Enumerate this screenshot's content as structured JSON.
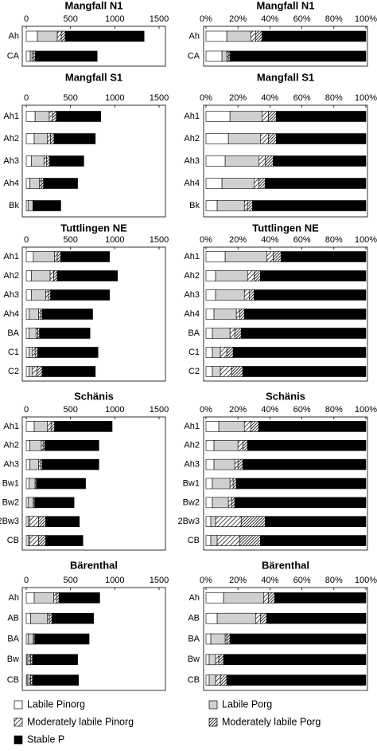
{
  "chart_data": [
    {
      "type": "bar",
      "orientation": "horizontal",
      "stacked": true,
      "title": "Mangfall N1",
      "categories": [
        "Ah",
        "CA"
      ],
      "xlim": [
        0,
        1500
      ],
      "xticks": [
        0,
        500,
        1000,
        1500
      ],
      "series": [
        {
          "values": [
            126,
            45
          ]
        },
        {
          "values": [
            225,
            20
          ]
        },
        {
          "values": [
            45,
            18
          ]
        },
        {
          "values": [
            45,
            18
          ]
        },
        {
          "values": [
            890,
            700
          ]
        }
      ]
    },
    {
      "type": "bar",
      "orientation": "horizontal",
      "stacked": true,
      "title": "Mangfall N1",
      "categories": [
        "Ah",
        "CA"
      ],
      "xlim": [
        0,
        100
      ],
      "xticks": [
        {
          "value": 0,
          "label": "0%"
        },
        {
          "value": 20,
          "label": "20%"
        },
        {
          "value": 40,
          "label": "40%"
        },
        {
          "value": 60,
          "label": "60%"
        },
        {
          "value": 80,
          "label": "80%"
        },
        {
          "value": 100,
          "label": "100%"
        }
      ],
      "series": [
        {
          "values": [
            13,
            10
          ]
        },
        {
          "values": [
            15,
            3
          ]
        },
        {
          "values": [
            3,
            1
          ]
        },
        {
          "values": [
            4,
            1
          ]
        },
        {
          "values": [
            65,
            85
          ]
        }
      ]
    },
    {
      "type": "bar",
      "orientation": "horizontal",
      "stacked": true,
      "title": "Mangfall S1",
      "categories": [
        "Ah1",
        "Ah2",
        "Ah3",
        "Ah4",
        "Bk"
      ],
      "xlim": [
        0,
        1500
      ],
      "xticks": [
        0,
        500,
        1000,
        1500
      ],
      "series": [
        {
          "values": [
            100,
            90,
            60,
            40,
            20
          ]
        },
        {
          "values": [
            160,
            150,
            140,
            110,
            55
          ]
        },
        {
          "values": [
            36,
            35,
            30,
            20,
            5
          ]
        },
        {
          "values": [
            45,
            40,
            35,
            25,
            5
          ]
        },
        {
          "values": [
            500,
            465,
            385,
            385,
            305
          ]
        }
      ]
    },
    {
      "type": "bar",
      "orientation": "horizontal",
      "stacked": true,
      "title": "Mangfall S1",
      "categories": [
        "Ah1",
        "Ah2",
        "Ah3",
        "Ah4",
        "Bk"
      ],
      "xlim": [
        0,
        100
      ],
      "xticks": [
        {
          "value": 0,
          "label": "0%"
        },
        {
          "value": 20,
          "label": "20%"
        },
        {
          "value": 40,
          "label": "40%"
        },
        {
          "value": 60,
          "label": "60%"
        },
        {
          "value": 80,
          "label": "80%"
        },
        {
          "value": 100,
          "label": "100%"
        }
      ],
      "series": [
        {
          "values": [
            15,
            14,
            12,
            10,
            7
          ]
        },
        {
          "values": [
            20,
            20,
            21,
            20,
            17
          ]
        },
        {
          "values": [
            4,
            5,
            4,
            3,
            2
          ]
        },
        {
          "values": [
            5,
            5,
            5,
            4,
            3
          ]
        },
        {
          "values": [
            56,
            56,
            58,
            63,
            71
          ]
        }
      ]
    },
    {
      "type": "bar",
      "orientation": "horizontal",
      "stacked": true,
      "title": "Tuttlingen NE",
      "categories": [
        "Ah1",
        "Ah2",
        "Ah3",
        "Ah4",
        "BA",
        "C1",
        "C2"
      ],
      "xlim": [
        0,
        1500
      ],
      "xticks": [
        0,
        500,
        1000,
        1500
      ],
      "series": [
        {
          "values": [
            80,
            60,
            60,
            30,
            30,
            30,
            30
          ]
        },
        {
          "values": [
            240,
            210,
            160,
            110,
            80,
            40,
            40
          ]
        },
        {
          "values": [
            30,
            40,
            25,
            20,
            20,
            30,
            50
          ]
        },
        {
          "values": [
            40,
            40,
            30,
            20,
            20,
            30,
            60
          ]
        },
        {
          "values": [
            550,
            680,
            665,
            570,
            570,
            680,
            600
          ]
        }
      ]
    },
    {
      "type": "bar",
      "orientation": "horizontal",
      "stacked": true,
      "title": "Tuttlingen NE",
      "categories": [
        "Ah1",
        "Ah2",
        "Ah3",
        "Ah4",
        "BA",
        "C1",
        "C2"
      ],
      "xlim": [
        0,
        100
      ],
      "xticks": [
        {
          "value": 0,
          "label": "0%"
        },
        {
          "value": 20,
          "label": "20%"
        },
        {
          "value": 40,
          "label": "40%"
        },
        {
          "value": 60,
          "label": "60%"
        },
        {
          "value": 80,
          "label": "80%"
        },
        {
          "value": 100,
          "label": "100%"
        }
      ],
      "series": [
        {
          "values": [
            12,
            6,
            6,
            5,
            4,
            4,
            4
          ]
        },
        {
          "values": [
            26,
            20,
            18,
            14,
            11,
            5,
            5
          ]
        },
        {
          "values": [
            4,
            4,
            3,
            2,
            3,
            4,
            7
          ]
        },
        {
          "values": [
            5,
            4,
            3,
            3,
            4,
            4,
            7
          ]
        },
        {
          "values": [
            53,
            66,
            70,
            76,
            78,
            83,
            77
          ]
        }
      ]
    },
    {
      "type": "bar",
      "orientation": "horizontal",
      "stacked": true,
      "title": "Schänis",
      "categories": [
        "Ah1",
        "Ah2",
        "Ah3",
        "Bw1",
        "Bw2",
        "2Bw3",
        "CB"
      ],
      "xlim": [
        0,
        1500
      ],
      "xticks": [
        0,
        500,
        1000,
        1500
      ],
      "series": [
        {
          "values": [
            90,
            40,
            40,
            30,
            20,
            20,
            20
          ]
        },
        {
          "values": [
            150,
            130,
            100,
            70,
            60,
            20,
            20
          ]
        },
        {
          "values": [
            40,
            20,
            20,
            10,
            10,
            100,
            100
          ]
        },
        {
          "values": [
            40,
            20,
            20,
            10,
            10,
            80,
            80
          ]
        },
        {
          "values": [
            650,
            610,
            640,
            550,
            440,
            380,
            420
          ]
        }
      ]
    },
    {
      "type": "bar",
      "orientation": "horizontal",
      "stacked": true,
      "title": "Schänis",
      "categories": [
        "Ah1",
        "Ah2",
        "Ah3",
        "Bw1",
        "Bw2",
        "2Bw3",
        "CB"
      ],
      "xlim": [
        0,
        100
      ],
      "xticks": [
        {
          "value": 0,
          "label": "0%"
        },
        {
          "value": 20,
          "label": "20%"
        },
        {
          "value": 40,
          "label": "40%"
        },
        {
          "value": 60,
          "label": "60%"
        },
        {
          "value": 80,
          "label": "80%"
        },
        {
          "value": 100,
          "label": "100%"
        }
      ],
      "series": [
        {
          "values": [
            8,
            5,
            5,
            4,
            4,
            3,
            3
          ]
        },
        {
          "values": [
            16,
            15,
            13,
            11,
            10,
            3,
            4
          ]
        },
        {
          "values": [
            4,
            3,
            2,
            2,
            2,
            16,
            14
          ]
        },
        {
          "values": [
            5,
            3,
            3,
            2,
            2,
            15,
            13
          ]
        },
        {
          "values": [
            67,
            74,
            77,
            81,
            82,
            63,
            66
          ]
        }
      ]
    },
    {
      "type": "bar",
      "orientation": "horizontal",
      "stacked": true,
      "title": "Bärenthal",
      "categories": [
        "Ah",
        "AB",
        "BA",
        "Bw",
        "CB"
      ],
      "xlim": [
        0,
        1500
      ],
      "xticks": [
        0,
        500,
        1000,
        1500
      ],
      "series": [
        {
          "values": [
            90,
            50,
            20,
            10,
            10
          ]
        },
        {
          "values": [
            220,
            190,
            60,
            20,
            20
          ]
        },
        {
          "values": [
            30,
            20,
            10,
            20,
            20
          ]
        },
        {
          "values": [
            30,
            30,
            10,
            20,
            20
          ]
        },
        {
          "values": [
            460,
            470,
            610,
            510,
            520
          ]
        }
      ]
    },
    {
      "type": "bar",
      "orientation": "horizontal",
      "stacked": true,
      "title": "Bärenthal",
      "categories": [
        "Ah",
        "AB",
        "BA",
        "Bw",
        "CB"
      ],
      "xlim": [
        0,
        100
      ],
      "xticks": [
        {
          "value": 0,
          "label": "0%"
        },
        {
          "value": 20,
          "label": "20%"
        },
        {
          "value": 40,
          "label": "40%"
        },
        {
          "value": 60,
          "label": "60%"
        },
        {
          "value": 80,
          "label": "80%"
        },
        {
          "value": 100,
          "label": "100%"
        }
      ],
      "series": [
        {
          "values": [
            11,
            7,
            3,
            2,
            2
          ]
        },
        {
          "values": [
            25,
            24,
            9,
            4,
            4
          ]
        },
        {
          "values": [
            3,
            3,
            1,
            2,
            3
          ]
        },
        {
          "values": [
            4,
            4,
            2,
            3,
            4
          ]
        },
        {
          "values": [
            57,
            62,
            85,
            89,
            87
          ]
        }
      ]
    }
  ],
  "legend": [
    {
      "name": "Labile Pinorg",
      "fill": "#ffffff"
    },
    {
      "name": "Labile Porg",
      "fill": "#d0d0d0"
    },
    {
      "name": "Moderately labile Pinorg",
      "fill": "hatch-light"
    },
    {
      "name": "Moderately labile Porg",
      "fill": "hatch-dense"
    },
    {
      "name": "Stable P",
      "fill": "#000000"
    }
  ]
}
